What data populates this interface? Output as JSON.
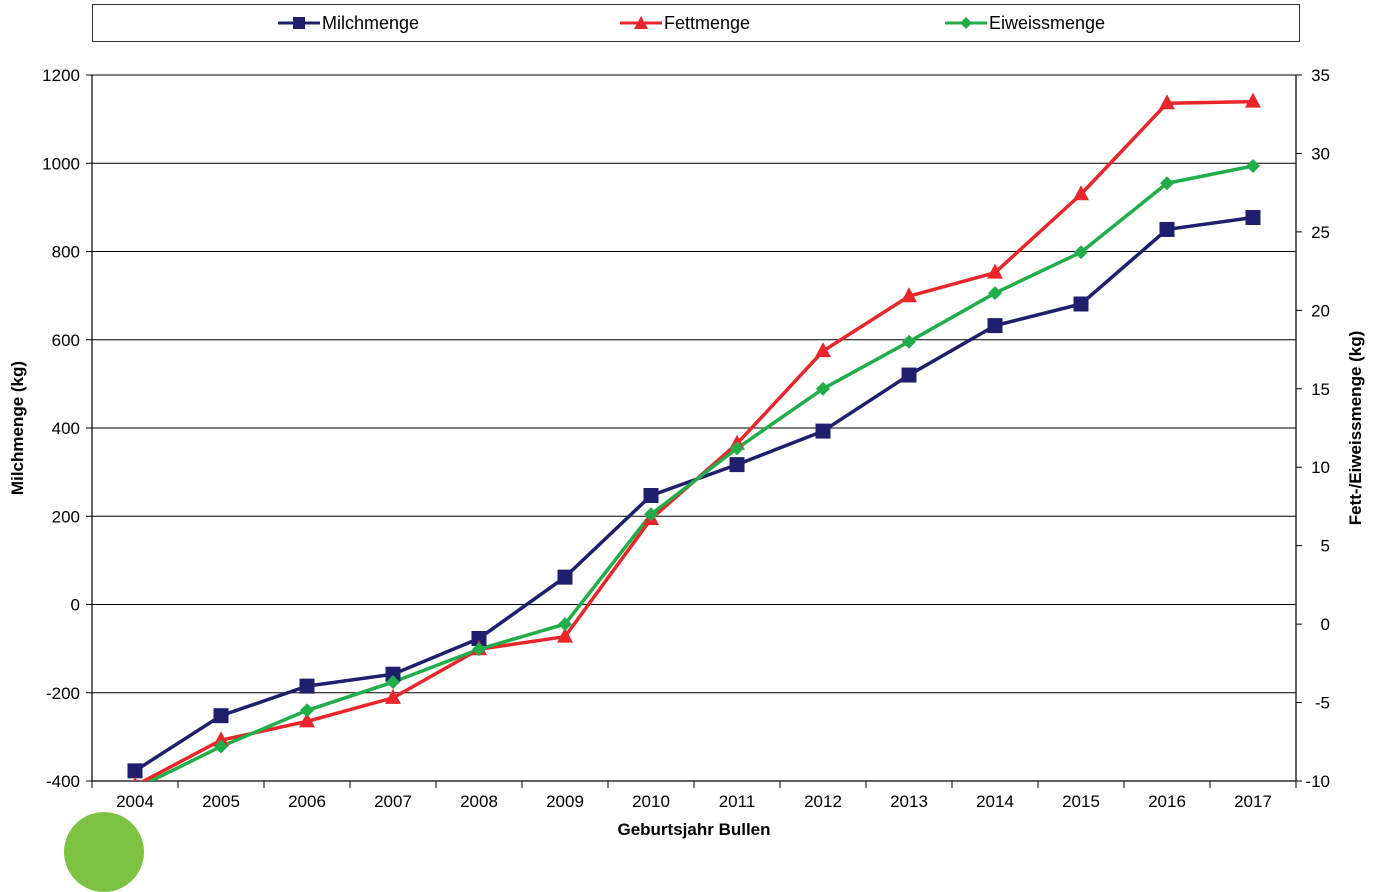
{
  "chart_data": {
    "type": "line",
    "categories": [
      "2004",
      "2005",
      "2006",
      "2007",
      "2008",
      "2009",
      "2010",
      "2011",
      "2012",
      "2013",
      "2014",
      "2015",
      "2016",
      "2017"
    ],
    "xlabel": "Geburtsjahr Bullen",
    "ylabel": "Milchmenge (kg)",
    "y2label": "Fett-/Eiweissmenge (kg)",
    "ylim": [
      -400,
      1200
    ],
    "yticks": [
      -400,
      -200,
      0,
      200,
      400,
      600,
      800,
      1000,
      1200
    ],
    "y2lim": [
      -10,
      35
    ],
    "y2ticks": [
      -10,
      -5,
      0,
      5,
      10,
      15,
      20,
      25,
      30,
      35
    ],
    "grid": true,
    "legend_position": "top",
    "series": [
      {
        "name": "Milchmenge",
        "axis": "left",
        "marker": "square",
        "color": "#1f1f6e",
        "values": [
          -377,
          -252,
          -185,
          -158,
          -77,
          62,
          247,
          317,
          393,
          520,
          632,
          681,
          850,
          877
        ]
      },
      {
        "name": "Fettmenge",
        "axis": "right",
        "marker": "triangle",
        "color": "#e8262b",
        "values": [
          -10.3,
          -7.4,
          -6.2,
          -4.7,
          -1.6,
          -0.8,
          6.7,
          11.5,
          17.4,
          20.9,
          22.4,
          27.4,
          33.2,
          33.3
        ]
      },
      {
        "name": "Eiweissmenge",
        "axis": "right",
        "marker": "diamond",
        "color": "#21ad4a",
        "values": [
          -10.5,
          -7.8,
          -5.5,
          -3.7,
          -1.6,
          0.0,
          7.0,
          11.2,
          15.0,
          18.0,
          21.1,
          23.7,
          28.1,
          29.2
        ]
      }
    ]
  }
}
